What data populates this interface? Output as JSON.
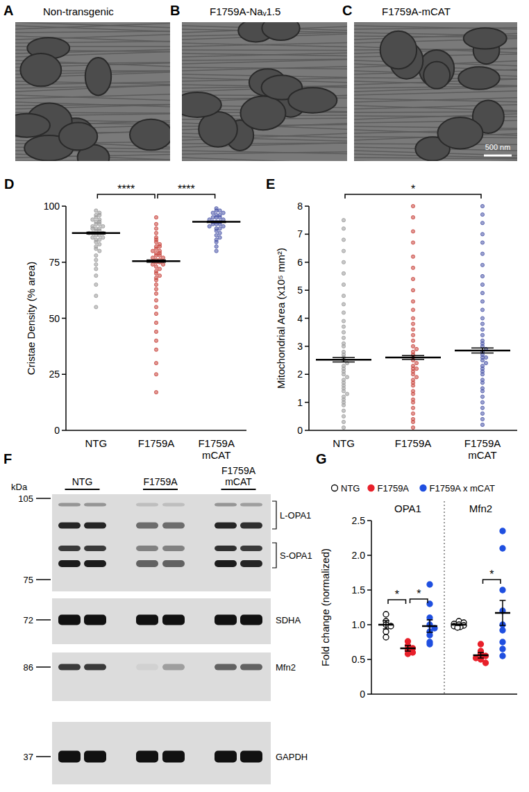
{
  "micrographs": [
    {
      "panel_label": "A",
      "title": "Non-transgenic"
    },
    {
      "panel_label": "B",
      "title": "F1759A-Naᵥ1.5"
    },
    {
      "panel_label": "C",
      "title": "F1759A-mCAT",
      "scale_bar": "500 nm"
    }
  ],
  "blot": {
    "panel_label": "F",
    "unit": "kDa",
    "lanes": [
      "NTG",
      "F1759A",
      "F1759A mCAT"
    ],
    "panels": [
      {
        "markers": [
          105,
          75
        ],
        "bands": [
          "L-OPA1",
          "S-OPA1"
        ]
      },
      {
        "markers": [
          72
        ],
        "bands": [
          "SDHA"
        ]
      },
      {
        "markers": [
          86
        ],
        "bands": [
          "Mfn2"
        ]
      },
      {
        "markers": [
          37
        ],
        "bands": [
          "GAPDH"
        ]
      }
    ]
  },
  "chart_data": [
    {
      "panel_label": "D",
      "type": "strip",
      "y_label": "Cristae Density (% area)",
      "categories": [
        "NTG",
        "F1759A",
        "F1759A mCAT"
      ],
      "colors": [
        "#9a9a9a",
        "#c8443c",
        "#4a55a8"
      ],
      "points": [
        [
          98,
          97,
          96,
          96,
          95,
          94,
          94,
          93,
          93,
          92,
          92,
          91,
          91,
          90,
          90,
          90,
          89,
          89,
          88,
          88,
          88,
          87,
          87,
          86,
          86,
          85,
          85,
          84,
          83,
          82,
          81,
          80,
          78,
          76,
          74,
          72,
          69,
          65,
          60,
          55
        ],
        [
          95,
          92,
          90,
          88,
          86,
          85,
          84,
          83,
          82,
          82,
          81,
          80,
          80,
          79,
          79,
          78,
          78,
          77,
          77,
          76,
          76,
          75,
          75,
          74,
          74,
          73,
          72,
          71,
          70,
          69,
          68,
          67,
          65,
          63,
          61,
          58,
          55,
          52,
          48,
          44,
          40,
          36,
          30,
          25,
          17
        ],
        [
          99,
          98,
          98,
          97,
          97,
          96,
          96,
          95,
          95,
          95,
          94,
          94,
          93,
          93,
          93,
          92,
          92,
          92,
          91,
          91,
          90,
          90,
          89,
          88,
          87,
          86,
          85,
          84,
          82,
          80
        ]
      ],
      "mean": [
        88,
        75.5,
        93
      ],
      "sem": [
        0.4,
        0.5,
        0.3
      ],
      "ylim": [
        0,
        100
      ],
      "yticks": [
        0,
        25,
        50,
        75,
        100
      ],
      "annotations": [
        {
          "text": "****",
          "from": 0,
          "to": 1
        },
        {
          "text": "****",
          "from": 1,
          "to": 2
        }
      ]
    },
    {
      "panel_label": "E",
      "type": "strip",
      "y_label": "Mitochondrial Area (x10⁵ mm²)",
      "categories": [
        "NTG",
        "F1759A",
        "F1759A mCAT"
      ],
      "colors": [
        "#9a9a9a",
        "#c8443c",
        "#4a55a8"
      ],
      "points": [
        [
          0.1,
          0.3,
          0.5,
          0.7,
          0.9,
          1.0,
          1.2,
          1.3,
          1.4,
          1.5,
          1.6,
          1.7,
          1.8,
          1.9,
          2.0,
          2.1,
          2.2,
          2.3,
          2.4,
          2.5,
          2.6,
          2.7,
          2.8,
          3.0,
          3.1,
          3.3,
          3.5,
          3.7,
          3.9,
          4.2,
          4.5,
          4.8,
          5.2,
          5.6,
          6.0,
          6.4,
          6.8,
          7.2,
          7.5,
          1.1
        ],
        [
          0.1,
          0.3,
          0.4,
          0.6,
          0.8,
          1.0,
          1.1,
          1.3,
          1.4,
          1.6,
          1.7,
          1.8,
          1.9,
          2.0,
          2.1,
          2.2,
          2.3,
          2.4,
          2.5,
          2.6,
          2.7,
          2.8,
          2.9,
          3.0,
          3.2,
          3.4,
          3.6,
          3.8,
          4.0,
          4.3,
          4.6,
          5.0,
          5.4,
          5.8,
          6.2,
          6.7,
          7.1,
          7.6,
          8.0,
          2.2
        ],
        [
          0.2,
          0.4,
          0.6,
          0.8,
          1.0,
          1.2,
          1.4,
          1.5,
          1.7,
          1.8,
          2.0,
          2.1,
          2.2,
          2.3,
          2.4,
          2.5,
          2.6,
          2.7,
          2.8,
          2.9,
          3.0,
          3.2,
          3.4,
          3.6,
          3.8,
          4.0,
          4.3,
          4.6,
          4.9,
          5.2,
          5.5,
          5.9,
          6.3,
          6.7,
          7.0,
          7.4,
          7.7,
          8.0,
          2.6,
          3.1
        ]
      ],
      "mean": [
        2.52,
        2.6,
        2.85
      ],
      "sem": [
        0.08,
        0.07,
        0.09
      ],
      "ylim": [
        0,
        8
      ],
      "yticks": [
        0,
        1,
        2,
        3,
        4,
        5,
        6,
        7,
        8
      ],
      "annotations": [
        {
          "text": "*",
          "from": 0,
          "to": 2
        }
      ]
    },
    {
      "panel_label": "G",
      "type": "strip",
      "y_label": "Fold change (normalized)",
      "categories": [
        "OPA1",
        "Mfn2"
      ],
      "legend": "top-left",
      "series": [
        {
          "name": "NTG",
          "color": "#000000",
          "marker": "open",
          "points": [
            [
              1.15,
              1.05,
              1.0,
              0.98,
              0.9,
              0.82
            ],
            [
              1.05,
              1.03,
              1.01,
              1.0,
              0.99,
              0.98,
              0.97,
              0.96
            ]
          ],
          "mean": [
            1.0,
            1.0
          ],
          "sem": [
            0.06,
            0.01
          ]
        },
        {
          "name": "F1759A",
          "color": "#e8202a",
          "marker": "filled",
          "points": [
            [
              0.76,
              0.7,
              0.66,
              0.63,
              0.6,
              0.58
            ],
            [
              0.72,
              0.62,
              0.58,
              0.55,
              0.52,
              0.5,
              0.45
            ]
          ],
          "mean": [
            0.66,
            0.56
          ],
          "sem": [
            0.04,
            0.04
          ]
        },
        {
          "name": "F1759A x mCAT",
          "color": "#1f4fe0",
          "marker": "filled",
          "points": [
            [
              1.58,
              1.3,
              1.1,
              1.0,
              0.95,
              0.9,
              0.85,
              0.75,
              0.72
            ],
            [
              2.35,
              2.1,
              1.5,
              1.2,
              1.0,
              0.92,
              0.75,
              0.65,
              0.55
            ]
          ],
          "mean": [
            0.98,
            1.17
          ],
          "sem": [
            0.09,
            0.18
          ]
        }
      ],
      "ylim": [
        0,
        2.5
      ],
      "yticks": [
        0,
        0.5,
        {
          "value": 1,
          "label": "1.0"
        },
        1.5,
        {
          "value": 2,
          "label": "2.0"
        },
        2.5
      ],
      "annotations": [
        {
          "text": "*",
          "category": 0,
          "from": 0,
          "to": 1
        },
        {
          "text": "*",
          "category": 0,
          "from": 1,
          "to": 2
        },
        {
          "text": "*",
          "category": 1,
          "from": 1,
          "to": 2
        }
      ]
    }
  ]
}
